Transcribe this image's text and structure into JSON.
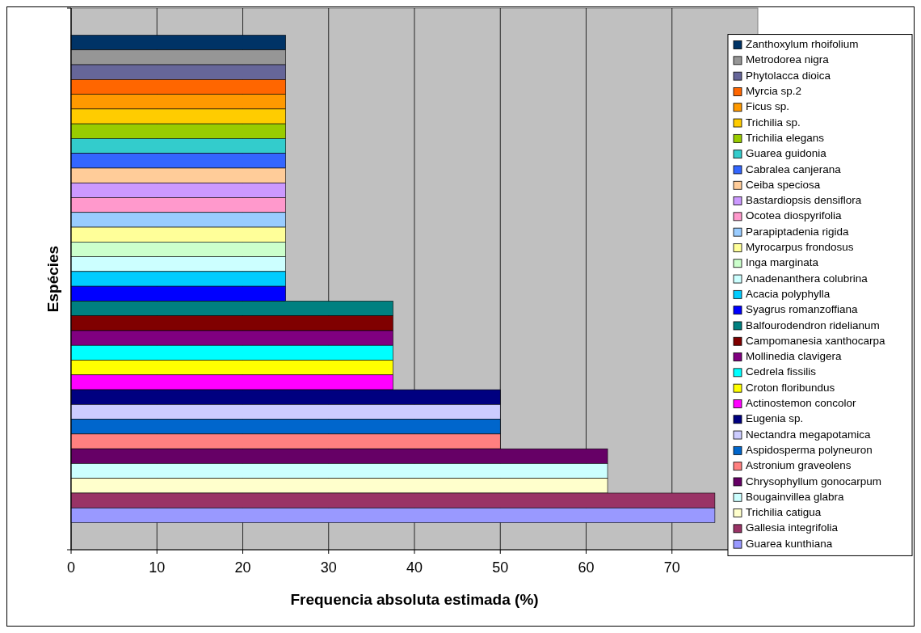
{
  "chart_data": {
    "type": "bar",
    "orientation": "horizontal",
    "xlabel": "Frequencia absoluta estimada (%)",
    "ylabel": "Espécies",
    "categories": [
      null
    ],
    "xlim": [
      0,
      80
    ],
    "xticks": [
      0,
      10,
      20,
      30,
      40,
      50,
      60,
      70
    ],
    "grid": "x",
    "legend": "right",
    "series": [
      {
        "name": "Zanthoxylum rhoifolium",
        "color": "#003366",
        "values": [
          25
        ]
      },
      {
        "name": "Metrodorea nigra",
        "color": "#969696",
        "values": [
          25
        ]
      },
      {
        "name": "Phytolacca dioica",
        "color": "#666699",
        "values": [
          25
        ]
      },
      {
        "name": "Myrcia sp.2",
        "color": "#ff6600",
        "values": [
          25
        ]
      },
      {
        "name": "Ficus sp.",
        "color": "#ff9900",
        "values": [
          25
        ]
      },
      {
        "name": "Trichilia sp.",
        "color": "#ffcc00",
        "values": [
          25
        ]
      },
      {
        "name": "Trichilia elegans",
        "color": "#99cc00",
        "values": [
          25
        ]
      },
      {
        "name": "Guarea guidonia",
        "color": "#33cccc",
        "values": [
          25
        ]
      },
      {
        "name": "Cabralea canjerana",
        "color": "#3366ff",
        "values": [
          25
        ]
      },
      {
        "name": "Ceiba speciosa",
        "color": "#ffcc99",
        "values": [
          25
        ]
      },
      {
        "name": "Bastardiopsis densiflora",
        "color": "#cc99ff",
        "values": [
          25
        ]
      },
      {
        "name": "Ocotea diospyrifolia",
        "color": "#ff99cc",
        "values": [
          25
        ]
      },
      {
        "name": "Parapiptadenia rigida",
        "color": "#99ccff",
        "values": [
          25
        ]
      },
      {
        "name": "Myrocarpus frondosus",
        "color": "#ffff99",
        "values": [
          25
        ]
      },
      {
        "name": "Inga marginata",
        "color": "#ccffcc",
        "values": [
          25
        ]
      },
      {
        "name": "Anadenanthera colubrina",
        "color": "#ccffff",
        "values": [
          25
        ]
      },
      {
        "name": "Acacia polyphylla",
        "color": "#00ccff",
        "values": [
          25
        ]
      },
      {
        "name": "Syagrus romanzoffiana",
        "color": "#0000ff",
        "values": [
          25
        ]
      },
      {
        "name": "Balfourodendron ridelianum",
        "color": "#008080",
        "values": [
          37.5
        ]
      },
      {
        "name": "Campomanesia xanthocarpa",
        "color": "#800000",
        "values": [
          37.5
        ]
      },
      {
        "name": "Mollinedia clavigera",
        "color": "#800080",
        "values": [
          37.5
        ]
      },
      {
        "name": "Cedrela fissilis",
        "color": "#00ffff",
        "values": [
          37.5
        ]
      },
      {
        "name": "Croton floribundus",
        "color": "#ffff00",
        "values": [
          37.5
        ]
      },
      {
        "name": "Actinostemon concolor",
        "color": "#ff00ff",
        "values": [
          37.5
        ]
      },
      {
        "name": "Eugenia sp.",
        "color": "#000080",
        "values": [
          50
        ]
      },
      {
        "name": "Nectandra megapotamica",
        "color": "#ccccff",
        "values": [
          50
        ]
      },
      {
        "name": "Aspidosperma polyneuron",
        "color": "#0066cc",
        "values": [
          50
        ]
      },
      {
        "name": "Astronium graveolens",
        "color": "#ff8080",
        "values": [
          50
        ]
      },
      {
        "name": "Chrysophyllum gonocarpum",
        "color": "#660066",
        "values": [
          62.5
        ]
      },
      {
        "name": "Bougainvillea glabra",
        "color": "#ccffff",
        "values": [
          62.5
        ]
      },
      {
        "name": "Trichilia catigua",
        "color": "#ffffcc",
        "values": [
          62.5
        ]
      },
      {
        "name": "Gallesia integrifolia",
        "color": "#993366",
        "values": [
          75
        ]
      },
      {
        "name": "Guarea kunthiana",
        "color": "#9999ff",
        "values": [
          75
        ]
      }
    ]
  }
}
